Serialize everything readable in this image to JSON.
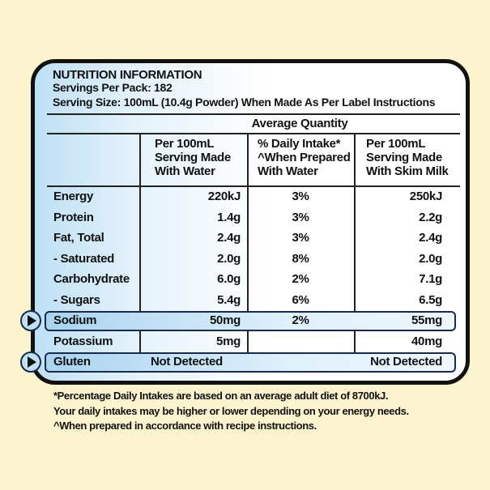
{
  "header": {
    "title": "NUTRITION INFORMATION",
    "servings": "Servings Per Pack: 182",
    "serving_size": "Serving Size: 100mL (10.4g Powder) When Made As Per Label Instructions"
  },
  "table": {
    "group_header": "Average Quantity",
    "columns": [
      [
        "Per 100mL",
        "Serving Made",
        "With Water"
      ],
      [
        "% Daily Intake*",
        "^When Prepared",
        "With Water"
      ],
      [
        "Per 100mL",
        "Serving Made",
        "With Skim Milk"
      ]
    ],
    "rows": [
      [
        "Energy",
        "220kJ",
        "3%",
        "250kJ"
      ],
      [
        "Protein",
        "1.4g",
        "3%",
        "2.2g"
      ],
      [
        "Fat, Total",
        "2.4g",
        "3%",
        "2.4g"
      ],
      [
        " - Saturated",
        "2.0g",
        "8%",
        "2.0g"
      ],
      [
        "Carbohydrate",
        "6.0g",
        "2%",
        "7.1g"
      ],
      [
        " - Sugars",
        "5.4g",
        "6%",
        "6.5g"
      ],
      [
        "Sodium",
        "50mg",
        "2%",
        "55mg"
      ],
      [
        "Potassium",
        "5mg",
        null,
        "40mg"
      ],
      [
        "Gluten",
        "Not Detected",
        null,
        "Not Detected"
      ]
    ]
  },
  "footnotes": [
    "*Percentage Daily Intakes are based on an average adult diet of 8700kJ.",
    "Your daily intakes may be higher or lower depending on your energy needs.",
    "^When prepared in accordance with recipe instructions."
  ]
}
